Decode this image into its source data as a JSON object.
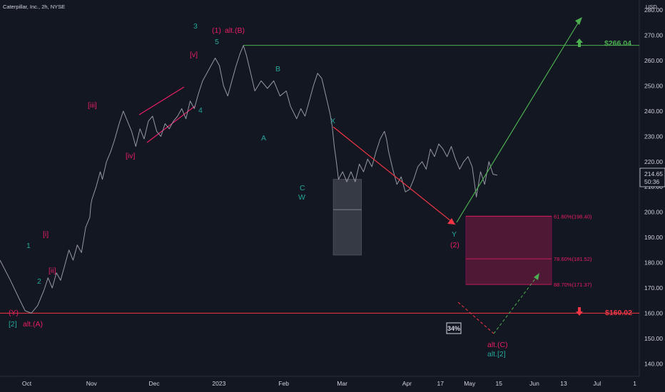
{
  "header": {
    "title": "Caterpillar, Inc., 2h, NYSE",
    "currency": "USD"
  },
  "price_box": {
    "price": "214.65",
    "countdown": "50:36"
  },
  "chart_data": {
    "type": "line",
    "ylim": [
      135,
      284
    ],
    "y_ticks": [
      140,
      150,
      160,
      170,
      180,
      190,
      200,
      210,
      220,
      230,
      240,
      250,
      260,
      270,
      280
    ],
    "x_ticks": [
      {
        "label": "Oct",
        "t": 0.8
      },
      {
        "label": "Nov",
        "t": 31.8
      },
      {
        "label": "Dec",
        "t": 61.8
      },
      {
        "label": "2023",
        "t": 92.8
      },
      {
        "label": "Feb",
        "t": 123.8
      },
      {
        "label": "Mar",
        "t": 151.8
      },
      {
        "label": "Apr",
        "t": 182.8
      },
      {
        "label": "17",
        "t": 198.8
      },
      {
        "label": "May",
        "t": 212.8
      },
      {
        "label": "15",
        "t": 226.8
      },
      {
        "label": "Jun",
        "t": 243.8
      },
      {
        "label": "13",
        "t": 257.8
      },
      {
        "label": "Jul",
        "t": 273.8
      },
      {
        "label": "1",
        "t": 291.8
      }
    ],
    "x_domain": [
      -12,
      294
    ],
    "price_path": [
      [
        -12,
        181
      ],
      [
        -7,
        173
      ],
      [
        -3,
        166
      ],
      [
        0,
        161
      ],
      [
        3,
        160
      ],
      [
        6,
        163
      ],
      [
        9,
        169
      ],
      [
        11,
        174
      ],
      [
        13,
        170
      ],
      [
        15,
        176
      ],
      [
        17,
        173
      ],
      [
        19,
        179
      ],
      [
        21,
        185
      ],
      [
        23,
        181
      ],
      [
        25,
        187
      ],
      [
        27,
        184
      ],
      [
        29,
        194
      ],
      [
        31,
        198
      ],
      [
        31.5,
        203
      ],
      [
        32,
        205
      ],
      [
        34,
        210
      ],
      [
        36,
        216
      ],
      [
        37,
        213
      ],
      [
        39,
        220
      ],
      [
        41,
        224
      ],
      [
        43,
        229
      ],
      [
        45,
        235
      ],
      [
        47,
        240
      ],
      [
        49,
        236
      ],
      [
        51,
        232
      ],
      [
        53,
        226
      ],
      [
        55,
        233
      ],
      [
        57,
        229
      ],
      [
        59,
        236
      ],
      [
        61,
        238
      ],
      [
        63,
        232
      ],
      [
        65,
        230
      ],
      [
        67,
        235
      ],
      [
        69,
        233
      ],
      [
        71,
        236
      ],
      [
        73,
        238
      ],
      [
        75,
        241
      ],
      [
        77,
        237
      ],
      [
        79,
        244
      ],
      [
        81,
        241
      ],
      [
        83,
        247
      ],
      [
        85,
        252
      ],
      [
        87,
        255
      ],
      [
        89,
        258
      ],
      [
        91,
        261
      ],
      [
        93,
        258
      ],
      [
        95,
        250
      ],
      [
        97,
        246
      ],
      [
        99,
        252
      ],
      [
        101,
        258
      ],
      [
        103,
        263
      ],
      [
        104.5,
        266
      ],
      [
        106,
        262
      ],
      [
        108,
        255
      ],
      [
        110,
        248
      ],
      [
        113,
        252
      ],
      [
        116,
        249
      ],
      [
        119,
        252
      ],
      [
        122,
        246
      ],
      [
        125,
        248
      ],
      [
        127,
        242
      ],
      [
        130,
        237
      ],
      [
        132,
        241
      ],
      [
        134,
        238
      ],
      [
        136,
        244
      ],
      [
        138,
        250
      ],
      [
        140,
        255
      ],
      [
        142,
        253
      ],
      [
        144,
        246
      ],
      [
        146,
        239
      ],
      [
        147,
        234
      ],
      [
        148,
        226
      ],
      [
        149,
        220
      ],
      [
        150,
        213
      ],
      [
        152,
        216
      ],
      [
        154,
        212
      ],
      [
        156,
        216
      ],
      [
        158,
        212
      ],
      [
        160,
        219
      ],
      [
        162,
        216
      ],
      [
        164,
        221
      ],
      [
        166,
        218
      ],
      [
        168,
        224
      ],
      [
        170,
        229
      ],
      [
        172,
        232
      ],
      [
        173,
        229
      ],
      [
        174,
        224
      ],
      [
        176,
        217
      ],
      [
        178,
        211
      ],
      [
        180,
        214
      ],
      [
        182,
        208
      ],
      [
        184,
        209
      ],
      [
        186,
        213
      ],
      [
        188,
        218
      ],
      [
        190,
        220
      ],
      [
        192,
        217
      ],
      [
        194,
        225
      ],
      [
        196,
        222
      ],
      [
        198,
        227
      ],
      [
        200,
        225
      ],
      [
        202,
        222
      ],
      [
        204,
        226
      ],
      [
        206,
        221
      ],
      [
        208,
        217
      ],
      [
        210,
        220
      ],
      [
        212,
        222
      ],
      [
        214,
        218
      ],
      [
        215,
        212
      ],
      [
        216,
        206
      ],
      [
        218,
        216
      ],
      [
        220,
        211
      ],
      [
        222,
        220
      ],
      [
        224,
        215
      ],
      [
        226,
        214.65
      ]
    ],
    "annotations": {
      "wave_labels": [
        {
          "text": "(Y)",
          "color": "#e91e63"
        },
        {
          "text": "[2]",
          "color": "#26a69a"
        },
        {
          "text": "alt.(A)",
          "color": "#e91e63"
        },
        {
          "text": "1",
          "color": "#26a69a"
        },
        {
          "text": "2",
          "color": "#26a69a"
        },
        {
          "text": "[i]",
          "color": "#e91e63"
        },
        {
          "text": "[ii]",
          "color": "#e91e63"
        },
        {
          "text": "[iii]",
          "color": "#e91e63"
        },
        {
          "text": "[iv]",
          "color": "#e91e63"
        },
        {
          "text": "3",
          "color": "#26a69a"
        },
        {
          "text": "[v]",
          "color": "#e91e63"
        },
        {
          "text": "4",
          "color": "#26a69a"
        },
        {
          "text": "(1)",
          "color": "#e91e63"
        },
        {
          "text": "alt.(B)",
          "color": "#e91e63"
        },
        {
          "text": "5",
          "color": "#26a69a"
        },
        {
          "text": "A",
          "color": "#26a69a"
        },
        {
          "text": "B",
          "color": "#26a69a"
        },
        {
          "text": "C",
          "color": "#26a69a"
        },
        {
          "text": "W",
          "color": "#26a69a"
        },
        {
          "text": "X",
          "color": "#26a69a"
        },
        {
          "text": "Y",
          "color": "#26a69a"
        },
        {
          "text": "(2)",
          "color": "#e91e63"
        },
        {
          "text": "alt.(C)",
          "color": "#e91e63"
        },
        {
          "text": "alt.[2]",
          "color": "#26a69a"
        }
      ],
      "fib_levels": [
        {
          "label": "61.80%(198.40)",
          "price": 198.4
        },
        {
          "label": "78.60%(181.52)",
          "price": 181.52
        },
        {
          "label": "88.70%(171.37)",
          "price": 171.37
        }
      ],
      "target_up": {
        "label": "$266.04",
        "price": 266.04,
        "color": "#4caf50"
      },
      "target_down": {
        "label": "$160.02",
        "price": 160.02,
        "color": "#f23645"
      },
      "probability": "34%"
    }
  },
  "colors": {
    "background": "#131722",
    "price": "#9598a1",
    "axis_text": "#d1d4dc",
    "green_wave": "#26a69a",
    "magenta_wave": "#e91e63",
    "target_zone": "#5b1a3a",
    "w_zone": "#363a45"
  }
}
